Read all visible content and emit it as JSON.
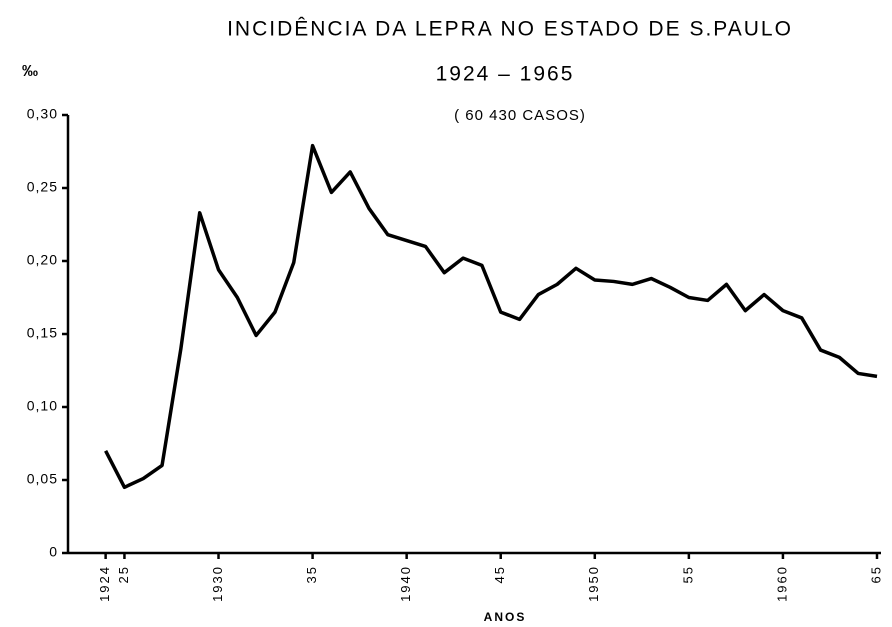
{
  "chart_data": {
    "type": "line",
    "title": "INCIDÊNCIA DA LEPRA NO ESTADO DE S.PAULO",
    "subtitle": "1924 – 1965",
    "annotation": "( 60 430 CASOS)",
    "y_label": "‰",
    "x_label": "ANOS",
    "x": [
      1924,
      1925,
      1926,
      1927,
      1928,
      1929,
      1930,
      1931,
      1932,
      1933,
      1934,
      1935,
      1936,
      1937,
      1938,
      1939,
      1940,
      1941,
      1942,
      1943,
      1944,
      1945,
      1946,
      1947,
      1948,
      1949,
      1950,
      1951,
      1952,
      1953,
      1954,
      1955,
      1956,
      1957,
      1958,
      1959,
      1960,
      1961,
      1962,
      1963,
      1964,
      1965
    ],
    "series": [
      {
        "color": "#000000",
        "values": [
          0.07,
          0.045,
          0.051,
          0.06,
          0.14,
          0.233,
          0.194,
          0.175,
          0.149,
          0.165,
          0.199,
          0.279,
          0.247,
          0.261,
          0.236,
          0.218,
          0.214,
          0.21,
          0.192,
          0.202,
          0.197,
          0.165,
          0.16,
          0.177,
          0.184,
          0.195,
          0.187,
          0.186,
          0.184,
          0.188,
          0.182,
          0.175,
          0.173,
          0.184,
          0.166,
          0.177,
          0.166,
          0.161,
          0.139,
          0.134,
          0.123,
          0.121
        ]
      }
    ],
    "xlim": [
      1922,
      1965
    ],
    "xticks": [
      1924,
      {
        "value": 1925,
        "label": "25"
      },
      1930,
      {
        "value": 1935,
        "label": "35"
      },
      1940,
      {
        "value": 1945,
        "label": "45"
      },
      1950,
      {
        "value": 1955,
        "label": "55"
      },
      1960,
      {
        "value": 1965,
        "label": "65"
      }
    ],
    "ylim": [
      0,
      0.3
    ],
    "yticks": [
      0,
      {
        "value": 0.05,
        "label": "0,05"
      },
      {
        "value": 0.1,
        "label": "0,10"
      },
      {
        "value": 0.15,
        "label": "0,15"
      },
      {
        "value": 0.2,
        "label": "0,20"
      },
      {
        "value": 0.25,
        "label": "0,25"
      },
      {
        "value": 0.3,
        "label": "0,30"
      }
    ],
    "grid": false
  }
}
